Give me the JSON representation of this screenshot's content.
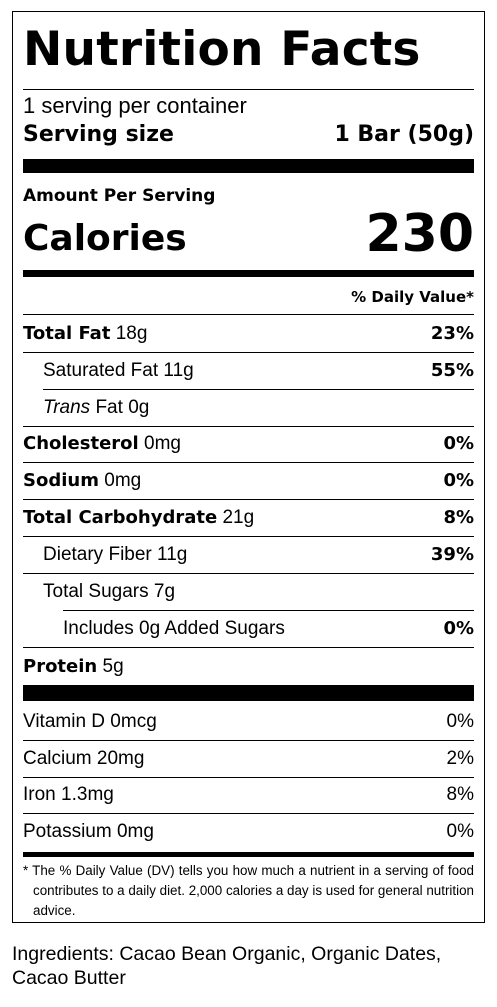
{
  "label": {
    "title": "Nutrition Facts",
    "servings_per_container": "1 serving per container",
    "serving_size_label": "Serving size",
    "serving_size_value": "1 Bar (50g)",
    "amount_per_serving": "Amount Per Serving",
    "calories_label": "Calories",
    "calories_value": "230",
    "daily_value_header": "% Daily Value*",
    "nutrients": [
      {
        "name": "Total Fat",
        "amount": "18g",
        "dv": "23%"
      },
      {
        "name": "Saturated Fat",
        "amount": "11g",
        "dv": "55%"
      },
      {
        "name_italic": "Trans",
        "name": "Fat",
        "amount": "0g",
        "dv": ""
      },
      {
        "name": "Cholesterol",
        "amount": "0mg",
        "dv": "0%"
      },
      {
        "name": "Sodium",
        "amount": "0mg",
        "dv": "0%"
      },
      {
        "name": "Total Carbohydrate",
        "amount": "21g",
        "dv": "8%"
      },
      {
        "name": "Dietary Fiber",
        "amount": "11g",
        "dv": "39%"
      },
      {
        "name": "Total Sugars",
        "amount": "7g",
        "dv": ""
      },
      {
        "name": "Includes 0g Added Sugars",
        "amount": "",
        "dv": "0%"
      },
      {
        "name": "Protein",
        "amount": "5g",
        "dv": ""
      }
    ],
    "vitamins": [
      {
        "name": "Vitamin D",
        "amount": "0mcg",
        "dv": "0%"
      },
      {
        "name": "Calcium",
        "amount": "20mg",
        "dv": "2%"
      },
      {
        "name": "Iron",
        "amount": "1.3mg",
        "dv": "8%"
      },
      {
        "name": "Potassium",
        "amount": "0mg",
        "dv": "0%"
      }
    ],
    "footnote": "* The % Daily Value (DV) tells you how much a nutrient in a serving of food contributes to a daily diet. 2,000 calories a day is used for general nutrition advice."
  },
  "ingredients": "Ingredients: Cacao Bean Organic, Organic Dates, Cacao Butter"
}
